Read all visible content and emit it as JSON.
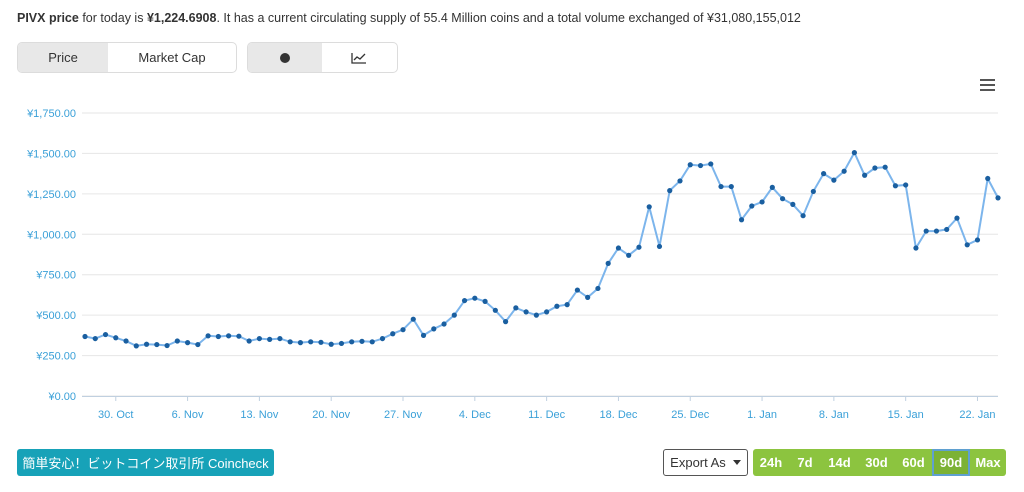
{
  "summary": {
    "coin_label": "PIVX price",
    "text_before_price": " for today is ",
    "price": "¥1,224.6908",
    "text_after_price": ". It has a current circulating supply of 55.4 Million coins and a total volume exchanged of ¥31,080,155,012"
  },
  "view_toggle": {
    "price": "Price",
    "market_cap": "Market Cap",
    "active": "price"
  },
  "chart_type_toggle": {
    "dot_icon": "dot-icon",
    "line_icon": "line-chart-icon",
    "active": "dot"
  },
  "menu_icon": "hamburger-menu-icon",
  "cta_button": "簡単安心！ビットコイン取引所 Coincheck",
  "export_label": "Export As",
  "ranges": [
    "24h",
    "7d",
    "14d",
    "30d",
    "60d",
    "90d",
    "Max"
  ],
  "active_range": "90d",
  "colors": {
    "line": "#7cb5ec",
    "point": "#1a5fa0",
    "grid": "#e6e6e6",
    "axis_label": "#3aa0d8",
    "cta": "#17a2b8",
    "range_bg": "#8cc43f"
  },
  "chart_data": {
    "type": "line",
    "x_tick_labels": [
      "30. Oct",
      "6. Nov",
      "13. Nov",
      "20. Nov",
      "27. Nov",
      "4. Dec",
      "11. Dec",
      "18. Dec",
      "25. Dec",
      "1. Jan",
      "8. Jan",
      "15. Jan",
      "22. Jan"
    ],
    "y_tick_labels": [
      "¥0.00",
      "¥250.00",
      "¥500.00",
      "¥750.00",
      "¥1,000.00",
      "¥1,250.00",
      "¥1,500.00",
      "¥1,750.00"
    ],
    "ylim": [
      0,
      1750
    ],
    "x_start": "2017-10-27",
    "grid": true,
    "series": [
      {
        "values": [
          368,
          355,
          380,
          360,
          340,
          310,
          320,
          318,
          312,
          340,
          330,
          318,
          372,
          368,
          372,
          370,
          340,
          355,
          350,
          355,
          335,
          330,
          335,
          332,
          320,
          325,
          335,
          338,
          335,
          355,
          385,
          410,
          475,
          375,
          415,
          445,
          500,
          590,
          605,
          585,
          530,
          460,
          545,
          520,
          500,
          520,
          555,
          565,
          655,
          610,
          665,
          820,
          915,
          870,
          920,
          1170,
          925,
          1270,
          1330,
          1430,
          1425,
          1435,
          1295,
          1295,
          1090,
          1175,
          1200,
          1290,
          1220,
          1185,
          1115,
          1265,
          1375,
          1335,
          1390,
          1505,
          1365,
          1410,
          1415,
          1300,
          1305,
          915,
          1020,
          1020,
          1030,
          1100,
          935,
          965,
          1345,
          1225
        ]
      }
    ]
  }
}
